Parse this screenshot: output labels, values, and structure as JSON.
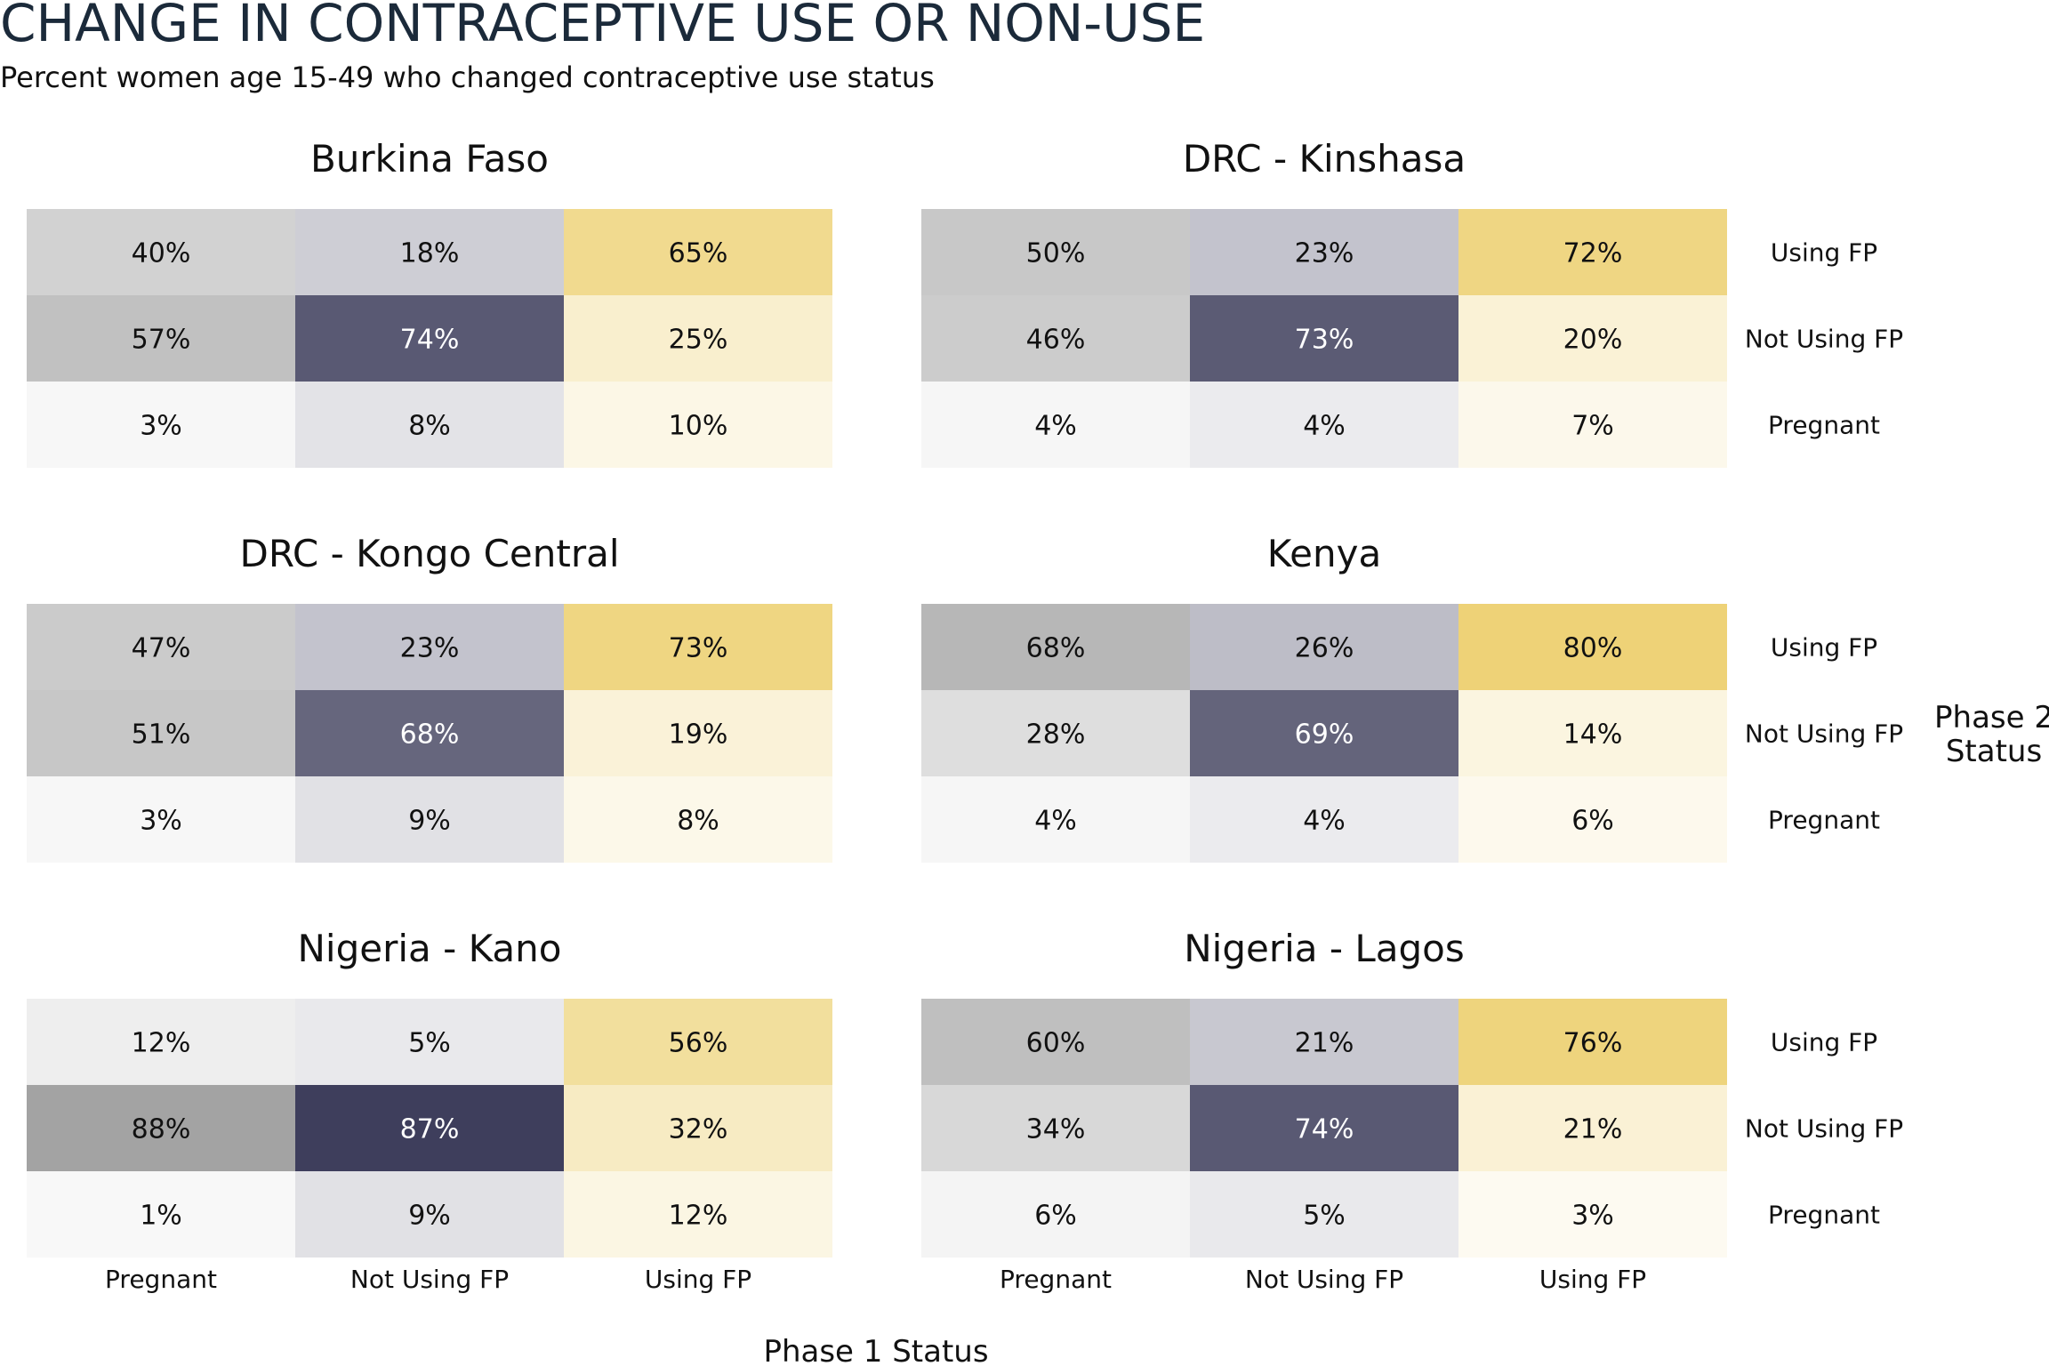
{
  "chart_data": {
    "type": "heatmap",
    "title": "CHANGE IN CONTRACEPTIVE USE OR NON-USE",
    "subtitle": "Percent women age 15-49 who changed contraceptive use status",
    "xlabel": "Phase 1 Status",
    "ylabel": "Phase 2 Status",
    "x_categories": [
      "Pregnant",
      "Not Using FP",
      "Using FP"
    ],
    "y_categories": [
      "Using FP",
      "Not Using FP",
      "Pregnant"
    ],
    "column_colors": [
      "#a3a3a3",
      "#3c3c5a",
      "#ecce6a"
    ],
    "panels": [
      {
        "name": "Burkina Faso",
        "values": [
          [
            40,
            18,
            65
          ],
          [
            57,
            74,
            25
          ],
          [
            3,
            8,
            10
          ]
        ],
        "labels": [
          [
            "40%",
            "18%",
            "65%"
          ],
          [
            "57%",
            "74%",
            "25%"
          ],
          [
            "3%",
            "8%",
            "10%"
          ]
        ]
      },
      {
        "name": "DRC - Kinshasa",
        "values": [
          [
            50,
            23,
            72
          ],
          [
            46,
            73,
            20
          ],
          [
            4,
            4,
            7
          ]
        ],
        "labels": [
          [
            "50%",
            "23%",
            "72%"
          ],
          [
            "46%",
            "73%",
            "20%"
          ],
          [
            "4%",
            "4%",
            "7%"
          ]
        ]
      },
      {
        "name": "DRC - Kongo Central",
        "values": [
          [
            47,
            23,
            73
          ],
          [
            51,
            68,
            19
          ],
          [
            3,
            9,
            8
          ]
        ],
        "labels": [
          [
            "47%",
            "23%",
            "73%"
          ],
          [
            "51%",
            "68%",
            "19%"
          ],
          [
            "3%",
            "9%",
            "8%"
          ]
        ]
      },
      {
        "name": "Kenya",
        "values": [
          [
            68,
            26,
            80
          ],
          [
            28,
            69,
            14
          ],
          [
            4,
            4,
            6
          ]
        ],
        "labels": [
          [
            "68%",
            "26%",
            "80%"
          ],
          [
            "28%",
            "69%",
            "14%"
          ],
          [
            "4%",
            "4%",
            "6%"
          ]
        ]
      },
      {
        "name": "Nigeria - Kano",
        "values": [
          [
            12,
            5,
            56
          ],
          [
            88,
            87,
            32
          ],
          [
            1,
            9,
            12
          ]
        ],
        "labels": [
          [
            "12%",
            "5%",
            "56%"
          ],
          [
            "88%",
            "87%",
            "32%"
          ],
          [
            "1%",
            "9%",
            "12%"
          ]
        ]
      },
      {
        "name": "Nigeria - Lagos",
        "values": [
          [
            60,
            21,
            76
          ],
          [
            34,
            74,
            21
          ],
          [
            6,
            5,
            3
          ]
        ],
        "labels": [
          [
            "60%",
            "21%",
            "76%"
          ],
          [
            "34%",
            "74%",
            "21%"
          ],
          [
            "6%",
            "5%",
            "3%"
          ]
        ]
      }
    ]
  }
}
